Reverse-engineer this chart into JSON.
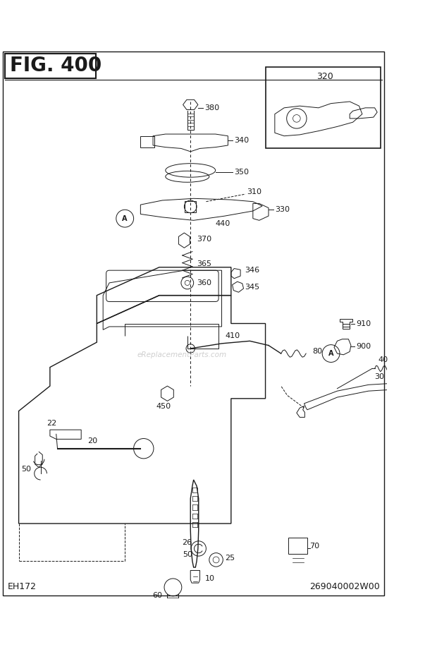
{
  "title": "FIG. 400",
  "bottom_left": "EH172",
  "bottom_right": "269040002W00",
  "background_color": "#ffffff",
  "line_color": "#1a1a1a",
  "text_color": "#1a1a1a",
  "watermark": "eReplacementParts.com",
  "fig_width": 6.2,
  "fig_height": 9.17,
  "dpi": 100
}
